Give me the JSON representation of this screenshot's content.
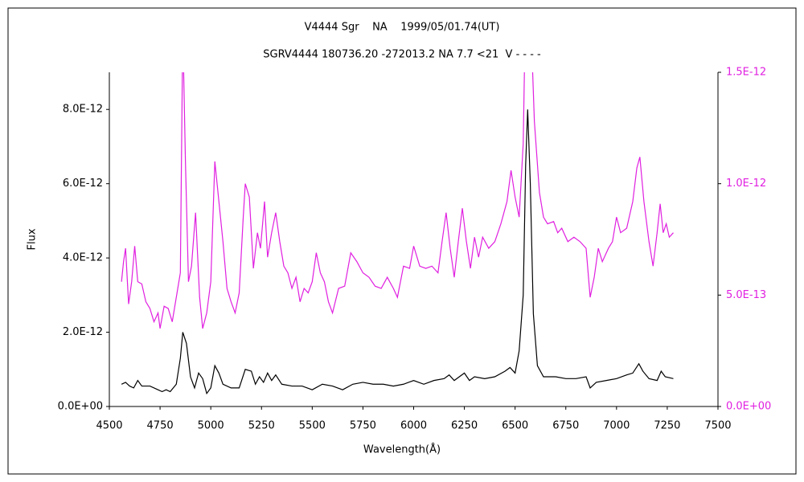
{
  "chart_data": {
    "type": "line",
    "title": "V4444 Sgr    NA    1999/05/01.74(UT)",
    "subtitle": "SGRV4444 180736.20 -272013.2 NA 7.7 <21  V - - - -",
    "xlabel": "Wavelength(Å)",
    "ylabel": "Flux",
    "xlim": [
      4500,
      7500
    ],
    "xticks": [
      4500,
      4750,
      5000,
      5250,
      5500,
      5750,
      6000,
      6250,
      6500,
      6750,
      7000,
      7250,
      7500
    ],
    "ylim": [
      0,
      9e-12
    ],
    "yticks": [
      {
        "value": 0,
        "label": "0.0E+00"
      },
      {
        "value": 2e-12,
        "label": "2.0E-12"
      },
      {
        "value": 4e-12,
        "label": "4.0E-12"
      },
      {
        "value": 6e-12,
        "label": "6.0E-12"
      },
      {
        "value": 8e-12,
        "label": "8.0E-12"
      }
    ],
    "y2lim": [
      0,
      1.5e-12
    ],
    "y2ticks": [
      {
        "value": 0,
        "label": "0.0E+00"
      },
      {
        "value": 5e-13,
        "label": "5.0E-13"
      },
      {
        "value": 1e-12,
        "label": "1.0E-12"
      },
      {
        "value": 1.5e-12,
        "label": "1.5E-12"
      }
    ],
    "y2color": "#e020e0",
    "series": [
      {
        "color": "#000000",
        "x": [
          4560,
          4580,
          4600,
          4620,
          4640,
          4660,
          4700,
          4740,
          4760,
          4780,
          4800,
          4830,
          4850,
          4862,
          4880,
          4900,
          4920,
          4940,
          4960,
          4980,
          5000,
          5020,
          5040,
          5060,
          5100,
          5140,
          5170,
          5200,
          5220,
          5240,
          5260,
          5280,
          5300,
          5320,
          5350,
          5400,
          5450,
          5500,
          5550,
          5600,
          5650,
          5700,
          5750,
          5800,
          5850,
          5900,
          5950,
          6000,
          6050,
          6100,
          6150,
          6175,
          6200,
          6250,
          6275,
          6300,
          6350,
          6400,
          6450,
          6475,
          6500,
          6520,
          6540,
          6552,
          6562,
          6575,
          6590,
          6610,
          6640,
          6700,
          6750,
          6800,
          6850,
          6870,
          6900,
          6950,
          7000,
          7050,
          7080,
          7110,
          7130,
          7160,
          7200,
          7220,
          7240,
          7280
        ],
        "values": [
          6e-13,
          6.5e-13,
          5.5e-13,
          5e-13,
          7e-13,
          5.5e-13,
          5.5e-13,
          4.5e-13,
          4e-13,
          4.5e-13,
          4e-13,
          6e-13,
          1.3e-12,
          2e-12,
          1.7e-12,
          8e-13,
          5e-13,
          9e-13,
          7.5e-13,
          3.5e-13,
          5e-13,
          1.1e-12,
          9e-13,
          6e-13,
          5e-13,
          5e-13,
          1e-12,
          9.5e-13,
          6e-13,
          8e-13,
          6.5e-13,
          9e-13,
          7e-13,
          8.5e-13,
          6e-13,
          5.5e-13,
          5.5e-13,
          4.5e-13,
          6e-13,
          5.5e-13,
          4.5e-13,
          6e-13,
          6.5e-13,
          6e-13,
          6e-13,
          5.5e-13,
          6e-13,
          7e-13,
          6e-13,
          7e-13,
          7.5e-13,
          8.5e-13,
          7e-13,
          9e-13,
          7e-13,
          8e-13,
          7.5e-13,
          8e-13,
          9.5e-13,
          1.05e-12,
          9e-13,
          1.5e-12,
          3e-12,
          6.5e-12,
          8e-12,
          6e-12,
          2.5e-12,
          1.1e-12,
          8e-13,
          8e-13,
          7.5e-13,
          7.5e-13,
          8e-13,
          5e-13,
          6.5e-13,
          7e-13,
          7.5e-13,
          8.5e-13,
          9e-13,
          1.15e-12,
          9.5e-13,
          7.5e-13,
          7e-13,
          9.5e-13,
          8e-13,
          7.5e-13
        ]
      },
      {
        "color": "#e020e0",
        "axis": "y2",
        "x": [
          4560,
          4570,
          4580,
          4595,
          4610,
          4625,
          4640,
          4660,
          4680,
          4700,
          4720,
          4740,
          4750,
          4770,
          4790,
          4810,
          4830,
          4850,
          4862,
          4875,
          4890,
          4905,
          4925,
          4945,
          4960,
          4980,
          5000,
          5020,
          5040,
          5060,
          5080,
          5100,
          5120,
          5140,
          5160,
          5170,
          5190,
          5210,
          5230,
          5245,
          5265,
          5280,
          5300,
          5320,
          5340,
          5360,
          5380,
          5400,
          5420,
          5440,
          5460,
          5480,
          5500,
          5520,
          5540,
          5560,
          5580,
          5600,
          5630,
          5660,
          5690,
          5720,
          5750,
          5780,
          5810,
          5840,
          5870,
          5900,
          5920,
          5950,
          5980,
          6000,
          6030,
          6060,
          6090,
          6120,
          6140,
          6160,
          6180,
          6200,
          6220,
          6240,
          6260,
          6280,
          6300,
          6320,
          6340,
          6370,
          6400,
          6430,
          6460,
          6480,
          6500,
          6520,
          6540,
          6555,
          6575,
          6595,
          6620,
          6640,
          6660,
          6690,
          6710,
          6730,
          6760,
          6790,
          6820,
          6850,
          6870,
          6890,
          6910,
          6930,
          6960,
          6980,
          7000,
          7020,
          7050,
          7080,
          7100,
          7115,
          7135,
          7160,
          7180,
          7200,
          7215,
          7230,
          7245,
          7260,
          7280
        ],
        "values": [
          5.6e-13,
          6.5e-13,
          7.1e-13,
          4.6e-13,
          5.6e-13,
          7.2e-13,
          5.6e-13,
          5.5e-13,
          4.7e-13,
          4.4e-13,
          3.8e-13,
          4.2e-13,
          3.5e-13,
          4.5e-13,
          4.4e-13,
          3.8e-13,
          4.9e-13,
          6e-13,
          1.7e-12,
          1.1e-12,
          5.6e-13,
          6.3e-13,
          8.7e-13,
          4.9e-13,
          3.5e-13,
          4.2e-13,
          5.6e-13,
          1.1e-12,
          9.2e-13,
          7.4e-13,
          5.3e-13,
          4.7e-13,
          4.2e-13,
          5.1e-13,
          8.5e-13,
          1e-12,
          9.4e-13,
          6.2e-13,
          7.8e-13,
          7.1e-13,
          9.2e-13,
          6.7e-13,
          7.8e-13,
          8.7e-13,
          7.4e-13,
          6.3e-13,
          6e-13,
          5.3e-13,
          5.8e-13,
          4.7e-13,
          5.3e-13,
          5.1e-13,
          5.6e-13,
          6.9e-13,
          6e-13,
          5.6e-13,
          4.7e-13,
          4.2e-13,
          5.3e-13,
          5.4e-13,
          6.9e-13,
          6.5e-13,
          6e-13,
          5.8e-13,
          5.4e-13,
          5.3e-13,
          5.8e-13,
          5.3e-13,
          4.9e-13,
          6.3e-13,
          6.2e-13,
          7.2e-13,
          6.3e-13,
          6.2e-13,
          6.3e-13,
          6e-13,
          7.4e-13,
          8.7e-13,
          7.1e-13,
          5.8e-13,
          7.4e-13,
          8.9e-13,
          7.4e-13,
          6.2e-13,
          7.6e-13,
          6.7e-13,
          7.6e-13,
          7.1e-13,
          7.4e-13,
          8.2e-13,
          9.2e-13,
          1.06e-12,
          9.4e-13,
          8.5e-13,
          1.18e-12,
          2e-12,
          1.8e-12,
          1.28e-12,
          9.6e-13,
          8.5e-13,
          8.2e-13,
          8.3e-13,
          7.8e-13,
          8e-13,
          7.4e-13,
          7.6e-13,
          7.4e-13,
          7.1e-13,
          4.9e-13,
          5.8e-13,
          7.1e-13,
          6.5e-13,
          7.1e-13,
          7.4e-13,
          8.5e-13,
          7.8e-13,
          8e-13,
          9.2e-13,
          1.07e-12,
          1.12e-12,
          9.2e-13,
          7.4e-13,
          6.3e-13,
          7.8e-13,
          9.1e-13,
          7.8e-13,
          8.2e-13,
          7.6e-13,
          7.8e-13
        ]
      }
    ]
  }
}
